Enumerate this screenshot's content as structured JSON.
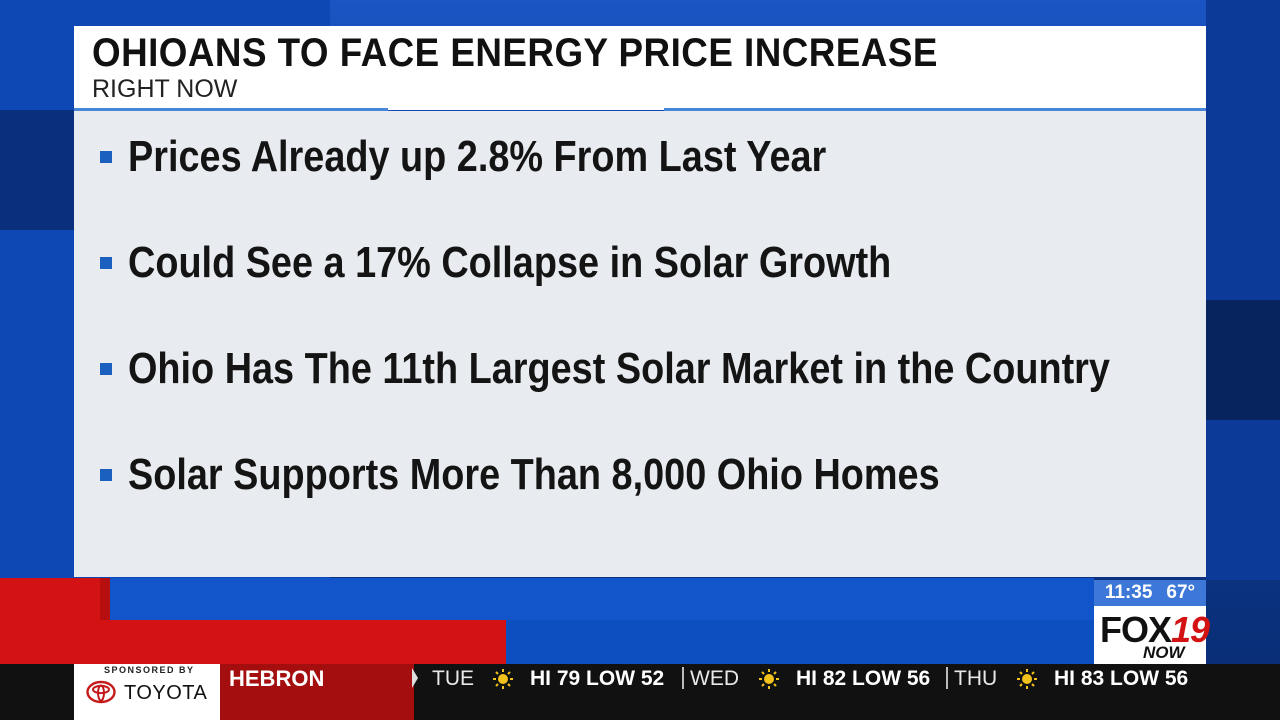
{
  "header": {
    "headline": "OHIOANS TO FACE ENERGY PRICE INCREASE",
    "subhead": "RIGHT NOW"
  },
  "bullets": [
    "Prices Already up 2.8% From Last Year",
    "Could See a 17% Collapse in Solar Growth",
    "Ohio Has The 11th Largest Solar Market in the Country",
    "Solar Supports More Than 8,000 Ohio Homes"
  ],
  "status": {
    "time": "11:35",
    "temp": "67°"
  },
  "station": {
    "brand": "FOX",
    "number": "19",
    "tagline": "NOW"
  },
  "ticker": {
    "sponsor_label": "SPONSORED BY",
    "sponsor_name": "TOYOTA",
    "city": "HEBRON",
    "forecast": [
      {
        "day": "TUE",
        "icon": "sun-icon",
        "hilo": "HI 79 LOW 52"
      },
      {
        "day": "WED",
        "icon": "sun-icon",
        "hilo": "HI 82 LOW 56"
      },
      {
        "day": "THU",
        "icon": "sun-icon",
        "hilo": "HI 83 LOW 56"
      }
    ]
  },
  "colors": {
    "brand_red": "#d31313",
    "brand_blue": "#0d4fc0",
    "bullet_blue": "#1b5fbf",
    "sun_yellow": "#f2c21a"
  }
}
